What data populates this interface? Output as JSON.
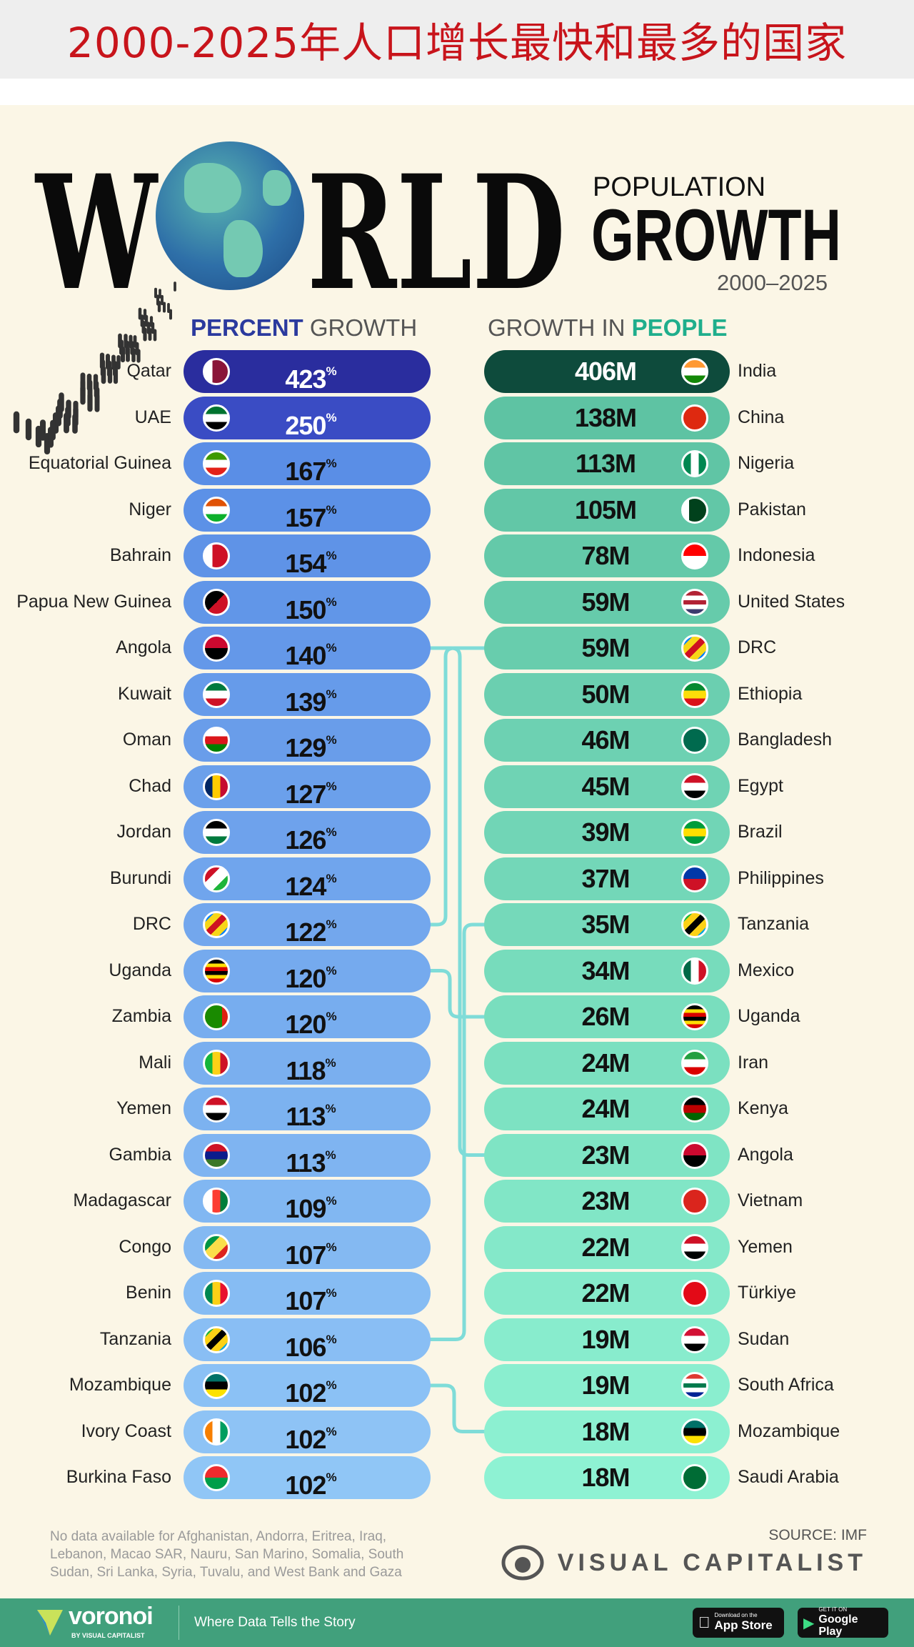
{
  "top_title": "2000-2025年人口增长最快和最多的国家",
  "header": {
    "world": "W",
    "world_rest": "RLD",
    "population": "POPULATION",
    "growth": "GROWTH",
    "years": "2000–2025"
  },
  "chart_data": [
    {
      "type": "table",
      "title": "PERCENT GROWTH",
      "title_bold": "PERCENT",
      "title_rest": " GROWTH",
      "unit": "%",
      "rows": [
        {
          "country": "Qatar",
          "value": 423,
          "flag": {
            "dir": "v",
            "colors": [
              "#ffffff",
              "#8a1538",
              "#8a1538"
            ]
          }
        },
        {
          "country": "UAE",
          "value": 250,
          "flag": {
            "dir": "h",
            "colors": [
              "#00732f",
              "#ffffff",
              "#000000"
            ]
          }
        },
        {
          "country": "Equatorial Guinea",
          "value": 167,
          "flag": {
            "dir": "h",
            "colors": [
              "#3e9a00",
              "#ffffff",
              "#e32118"
            ]
          }
        },
        {
          "country": "Niger",
          "value": 157,
          "flag": {
            "dir": "h",
            "colors": [
              "#e05206",
              "#ffffff",
              "#0db02b"
            ]
          }
        },
        {
          "country": "Bahrain",
          "value": 154,
          "flag": {
            "dir": "v",
            "colors": [
              "#ffffff",
              "#ce1126",
              "#ce1126"
            ]
          }
        },
        {
          "country": "Papua New Guinea",
          "value": 150,
          "flag": {
            "dir": "d",
            "colors": [
              "#000000",
              "#ce1126"
            ]
          }
        },
        {
          "country": "Angola",
          "value": 140,
          "flag": {
            "dir": "h",
            "colors": [
              "#cc092f",
              "#000000"
            ]
          }
        },
        {
          "country": "Kuwait",
          "value": 139,
          "flag": {
            "dir": "h",
            "colors": [
              "#007a3d",
              "#ffffff",
              "#ce1126"
            ]
          }
        },
        {
          "country": "Oman",
          "value": 129,
          "flag": {
            "dir": "h",
            "colors": [
              "#ffffff",
              "#db161b",
              "#008000"
            ]
          }
        },
        {
          "country": "Chad",
          "value": 127,
          "flag": {
            "dir": "v",
            "colors": [
              "#002664",
              "#fecb00",
              "#c60c30"
            ]
          }
        },
        {
          "country": "Jordan",
          "value": 126,
          "flag": {
            "dir": "h",
            "colors": [
              "#000000",
              "#ffffff",
              "#007a3d"
            ]
          }
        },
        {
          "country": "Burundi",
          "value": 124,
          "flag": {
            "dir": "d",
            "colors": [
              "#ce1126",
              "#ffffff",
              "#1eb53a"
            ]
          }
        },
        {
          "country": "DRC",
          "value": 122,
          "flag": {
            "dir": "d",
            "colors": [
              "#007fff",
              "#f7d618",
              "#ce1021",
              "#f7d618",
              "#007fff"
            ]
          }
        },
        {
          "country": "Uganda",
          "value": 120,
          "flag": {
            "dir": "h",
            "colors": [
              "#000000",
              "#fcdc04",
              "#d90000",
              "#000000",
              "#fcdc04",
              "#d90000"
            ]
          }
        },
        {
          "country": "Zambia",
          "value": 120,
          "flag": {
            "dir": "v",
            "colors": [
              "#198a00",
              "#198a00",
              "#198a00",
              "#de2010"
            ]
          }
        },
        {
          "country": "Mali",
          "value": 118,
          "flag": {
            "dir": "v",
            "colors": [
              "#14b53a",
              "#fcd116",
              "#ce1126"
            ]
          }
        },
        {
          "country": "Yemen",
          "value": 113,
          "flag": {
            "dir": "h",
            "colors": [
              "#ce1126",
              "#ffffff",
              "#000000"
            ]
          }
        },
        {
          "country": "Gambia",
          "value": 113,
          "flag": {
            "dir": "h",
            "colors": [
              "#ce1126",
              "#0c1c8c",
              "#3a7728"
            ]
          }
        },
        {
          "country": "Madagascar",
          "value": 109,
          "flag": {
            "dir": "v",
            "colors": [
              "#ffffff",
              "#fc3d32",
              "#007e3a"
            ]
          }
        },
        {
          "country": "Congo",
          "value": 107,
          "flag": {
            "dir": "d",
            "colors": [
              "#009543",
              "#fbde4a",
              "#dc241f"
            ]
          }
        },
        {
          "country": "Benin",
          "value": 107,
          "flag": {
            "dir": "v",
            "colors": [
              "#008751",
              "#fcd116",
              "#e8112d"
            ]
          }
        },
        {
          "country": "Tanzania",
          "value": 106,
          "flag": {
            "dir": "d",
            "colors": [
              "#1eb53a",
              "#fcd116",
              "#000000",
              "#fcd116",
              "#00a3dd"
            ]
          }
        },
        {
          "country": "Mozambique",
          "value": 102,
          "flag": {
            "dir": "h",
            "colors": [
              "#007168",
              "#000000",
              "#fce100"
            ]
          }
        },
        {
          "country": "Ivory Coast",
          "value": 102,
          "flag": {
            "dir": "v",
            "colors": [
              "#f77f00",
              "#ffffff",
              "#009e60"
            ]
          }
        },
        {
          "country": "Burkina Faso",
          "value": 102,
          "flag": {
            "dir": "h",
            "colors": [
              "#ef2b2d",
              "#009e49"
            ]
          }
        }
      ]
    },
    {
      "type": "table",
      "title": "GROWTH IN PEOPLE",
      "title_rest": "GROWTH IN ",
      "title_bold": "PEOPLE",
      "unit": "M",
      "rows": [
        {
          "country": "India",
          "value": 406,
          "flag": {
            "dir": "h",
            "colors": [
              "#ff9933",
              "#ffffff",
              "#138808"
            ]
          }
        },
        {
          "country": "China",
          "value": 138,
          "flag": {
            "dir": "h",
            "colors": [
              "#de2910"
            ]
          }
        },
        {
          "country": "Nigeria",
          "value": 113,
          "flag": {
            "dir": "v",
            "colors": [
              "#008751",
              "#ffffff",
              "#008751"
            ]
          }
        },
        {
          "country": "Pakistan",
          "value": 105,
          "flag": {
            "dir": "v",
            "colors": [
              "#ffffff",
              "#01411c",
              "#01411c",
              "#01411c"
            ]
          }
        },
        {
          "country": "Indonesia",
          "value": 78,
          "flag": {
            "dir": "h",
            "colors": [
              "#ff0000",
              "#ffffff"
            ]
          }
        },
        {
          "country": "United States",
          "value": 59,
          "flag": {
            "dir": "h",
            "colors": [
              "#b22234",
              "#ffffff",
              "#b22234",
              "#ffffff",
              "#3c3b6e"
            ]
          }
        },
        {
          "country": "DRC",
          "value": 59,
          "flag": {
            "dir": "d",
            "colors": [
              "#007fff",
              "#f7d618",
              "#ce1021",
              "#f7d618",
              "#007fff"
            ]
          }
        },
        {
          "country": "Ethiopia",
          "value": 50,
          "flag": {
            "dir": "h",
            "colors": [
              "#078930",
              "#fcdd09",
              "#da121a"
            ]
          }
        },
        {
          "country": "Bangladesh",
          "value": 46,
          "flag": {
            "dir": "h",
            "colors": [
              "#006a4e"
            ]
          }
        },
        {
          "country": "Egypt",
          "value": 45,
          "flag": {
            "dir": "h",
            "colors": [
              "#ce1126",
              "#ffffff",
              "#000000"
            ]
          }
        },
        {
          "country": "Brazil",
          "value": 39,
          "flag": {
            "dir": "h",
            "colors": [
              "#009c3b",
              "#ffdf00",
              "#009c3b"
            ]
          }
        },
        {
          "country": "Philippines",
          "value": 37,
          "flag": {
            "dir": "h",
            "colors": [
              "#0038a8",
              "#ce1126"
            ]
          }
        },
        {
          "country": "Tanzania",
          "value": 35,
          "flag": {
            "dir": "d",
            "colors": [
              "#1eb53a",
              "#fcd116",
              "#000000",
              "#fcd116",
              "#00a3dd"
            ]
          }
        },
        {
          "country": "Mexico",
          "value": 34,
          "flag": {
            "dir": "v",
            "colors": [
              "#006847",
              "#ffffff",
              "#ce1126"
            ]
          }
        },
        {
          "country": "Uganda",
          "value": 26,
          "flag": {
            "dir": "h",
            "colors": [
              "#000000",
              "#fcdc04",
              "#d90000",
              "#000000",
              "#fcdc04",
              "#d90000"
            ]
          }
        },
        {
          "country": "Iran",
          "value": 24,
          "flag": {
            "dir": "h",
            "colors": [
              "#239f40",
              "#ffffff",
              "#da0000"
            ]
          }
        },
        {
          "country": "Kenya",
          "value": 24,
          "flag": {
            "dir": "h",
            "colors": [
              "#000000",
              "#bb0000",
              "#006600"
            ]
          }
        },
        {
          "country": "Angola",
          "value": 23,
          "flag": {
            "dir": "h",
            "colors": [
              "#cc092f",
              "#000000"
            ]
          }
        },
        {
          "country": "Vietnam",
          "value": 23,
          "flag": {
            "dir": "h",
            "colors": [
              "#da251d"
            ]
          }
        },
        {
          "country": "Yemen",
          "value": 22,
          "flag": {
            "dir": "h",
            "colors": [
              "#ce1126",
              "#ffffff",
              "#000000"
            ]
          }
        },
        {
          "country": "Türkiye",
          "value": 22,
          "flag": {
            "dir": "h",
            "colors": [
              "#e30a17"
            ]
          }
        },
        {
          "country": "Sudan",
          "value": 19,
          "flag": {
            "dir": "h",
            "colors": [
              "#d21034",
              "#ffffff",
              "#000000"
            ]
          }
        },
        {
          "country": "South Africa",
          "value": 19,
          "flag": {
            "dir": "h",
            "colors": [
              "#de3831",
              "#ffffff",
              "#007a4d",
              "#ffffff",
              "#002395"
            ]
          }
        },
        {
          "country": "Mozambique",
          "value": 18,
          "flag": {
            "dir": "h",
            "colors": [
              "#007168",
              "#000000",
              "#fce100"
            ]
          }
        },
        {
          "country": "Saudi Arabia",
          "value": 18,
          "flag": {
            "dir": "h",
            "colors": [
              "#006c35"
            ]
          }
        }
      ]
    }
  ],
  "links": [
    [
      "Angola",
      "Angola"
    ],
    [
      "DRC",
      "DRC"
    ],
    [
      "Uganda",
      "Uganda"
    ],
    [
      "Tanzania",
      "Tanzania"
    ],
    [
      "Mozambique",
      "Mozambique"
    ]
  ],
  "colors": {
    "percent_accent": "#2b3a9e",
    "people_accent": "#1fae8c",
    "link": "#7fdcd8",
    "footer": "#41a07c",
    "title": "#c8141b"
  },
  "notes": "No data available for Afghanistan, Andorra, Eritrea, Iraq, Lebanon, Macao SAR, Nauru, San Marino, Somalia, South Sudan, Sri Lanka, Syria, Tuvalu, and West Bank and Gaza",
  "source": "SOURCE: IMF",
  "brand": "VISUAL CAPITALIST",
  "footer": {
    "logo": "voronoi",
    "logo_sub": "BY VISUAL CAPITALIST",
    "tagline": "Where Data Tells the Story",
    "app_store_small": "Download on the",
    "app_store": "App Store",
    "google_small": "GET IT ON",
    "google": "Google Play"
  }
}
